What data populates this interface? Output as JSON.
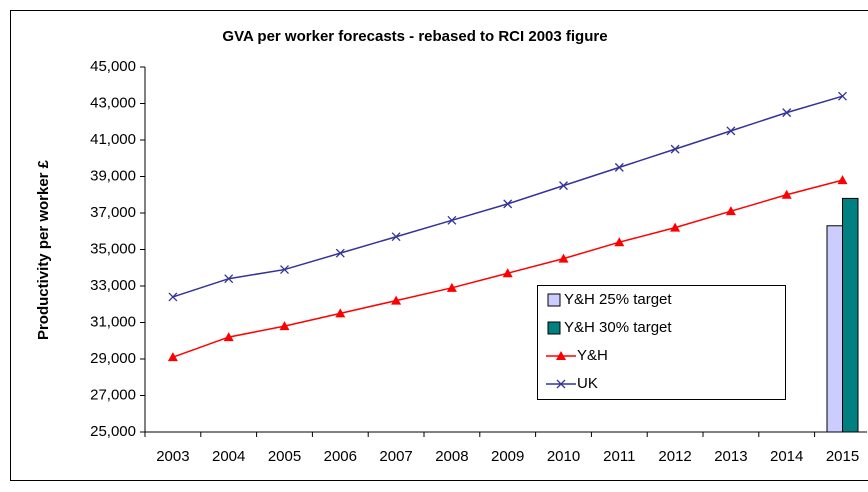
{
  "chart_data": {
    "type": "bar_line",
    "title": "GVA per worker forecasts - rebased to RCI 2003 figure",
    "y_label": "Productivity per worker £",
    "categories": [
      "2003",
      "2004",
      "2005",
      "2006",
      "2007",
      "2008",
      "2009",
      "2010",
      "2011",
      "2012",
      "2013",
      "2014",
      "2015"
    ],
    "series": [
      {
        "name": "Y&H 25% target",
        "kind": "bar",
        "color": "#ccccff",
        "values": [
          null,
          null,
          null,
          null,
          null,
          null,
          null,
          null,
          null,
          null,
          null,
          null,
          36300
        ]
      },
      {
        "name": "Y&H 30% target",
        "kind": "bar",
        "color": "#008080",
        "values": [
          null,
          null,
          null,
          null,
          null,
          null,
          null,
          null,
          null,
          null,
          null,
          null,
          37800
        ]
      },
      {
        "name": "Y&H",
        "kind": "line",
        "marker": "triangle",
        "color": "#ff0000",
        "values": [
          29100,
          30200,
          30800,
          31500,
          32200,
          32900,
          33700,
          34500,
          35400,
          36200,
          37100,
          38000,
          38800
        ]
      },
      {
        "name": "UK",
        "kind": "line",
        "marker": "x",
        "color": "#333399",
        "values": [
          32400,
          33400,
          33900,
          34800,
          35700,
          36600,
          37500,
          38500,
          39500,
          40500,
          41500,
          42500,
          43400
        ]
      }
    ],
    "ylim": [
      25000,
      45000
    ],
    "yticks": [
      {
        "value": 25000,
        "label": "25,000"
      },
      {
        "value": 27000,
        "label": "27,000"
      },
      {
        "value": 29000,
        "label": "29,000"
      },
      {
        "value": 31000,
        "label": "31,000"
      },
      {
        "value": 33000,
        "label": "33,000"
      },
      {
        "value": 35000,
        "label": "35,000"
      },
      {
        "value": 37000,
        "label": "37,000"
      },
      {
        "value": 39000,
        "label": "39,000"
      },
      {
        "value": 41000,
        "label": "41,000"
      },
      {
        "value": 43000,
        "label": "43,000"
      },
      {
        "value": 45000,
        "label": "45,000"
      }
    ],
    "grid": false
  }
}
